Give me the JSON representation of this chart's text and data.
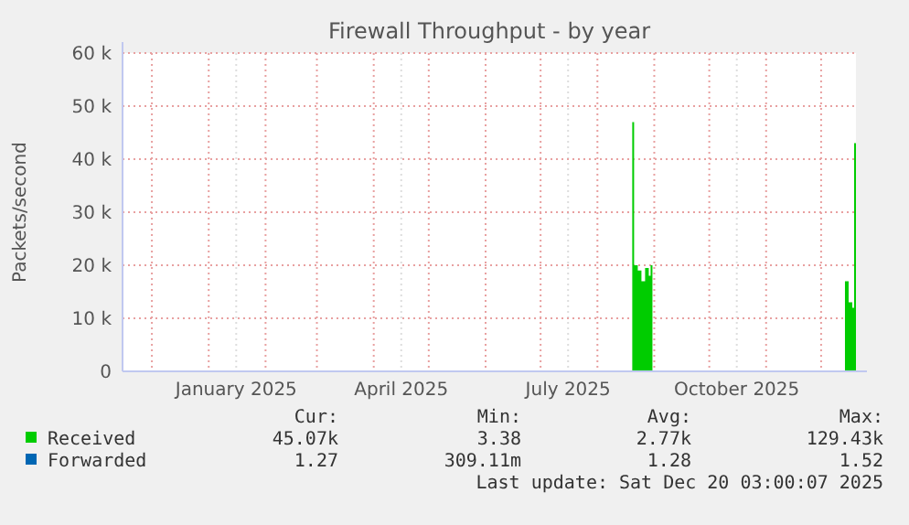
{
  "chart_data": {
    "type": "area",
    "title": "Firewall Throughput - by year",
    "ylabel": "Packets/second",
    "x": [
      "2024-11-15",
      "2025-08-19",
      "2025-08-20",
      "2025-08-21",
      "2025-08-23",
      "2025-08-25",
      "2025-08-27",
      "2025-08-29",
      "2025-08-30",
      "2025-08-31",
      "2025-12-12",
      "2025-12-14",
      "2025-12-16",
      "2025-12-18",
      "2025-12-19",
      "2025-12-20"
    ],
    "series": [
      {
        "name": "Received",
        "color": "#00cc00",
        "values": [
          0,
          0,
          47000,
          20000,
          19000,
          17000,
          19500,
          18000,
          20000,
          0,
          0,
          17000,
          13000,
          12000,
          43000,
          45000
        ]
      },
      {
        "name": "Forwarded",
        "color": "#0066b3",
        "values": [
          null,
          null,
          null,
          null,
          null,
          null,
          null,
          null,
          null,
          null,
          null,
          null,
          null,
          null,
          null,
          null
        ]
      }
    ],
    "xlim": [
      "2024-11-15",
      "2025-12-20"
    ],
    "xticks": [
      {
        "value": "2024-12-01",
        "label": null
      },
      {
        "value": "2025-01-01",
        "label": null
      },
      {
        "value": "2025-01-16",
        "label": "January 2025"
      },
      {
        "value": "2025-02-01",
        "label": null
      },
      {
        "value": "2025-03-01",
        "label": null
      },
      {
        "value": "2025-04-01",
        "label": null
      },
      {
        "value": "2025-04-16",
        "label": "April 2025"
      },
      {
        "value": "2025-05-01",
        "label": null
      },
      {
        "value": "2025-06-01",
        "label": null
      },
      {
        "value": "2025-07-01",
        "label": null
      },
      {
        "value": "2025-07-16",
        "label": "July 2025"
      },
      {
        "value": "2025-08-01",
        "label": null
      },
      {
        "value": "2025-09-01",
        "label": null
      },
      {
        "value": "2025-10-01",
        "label": null
      },
      {
        "value": "2025-10-16",
        "label": "October 2025"
      },
      {
        "value": "2025-11-01",
        "label": null
      },
      {
        "value": "2025-12-01",
        "label": null
      }
    ],
    "ylim": [
      0,
      60000
    ],
    "yticks": [
      0,
      {
        "value": 10000,
        "label": "10 k"
      },
      {
        "value": 20000,
        "label": "20 k"
      },
      {
        "value": 30000,
        "label": "30 k"
      },
      {
        "value": 40000,
        "label": "40 k"
      },
      {
        "value": 50000,
        "label": "50 k"
      },
      {
        "value": 60000,
        "label": "60 k"
      }
    ],
    "grid": true,
    "legend": "bottom",
    "annotations": [
      "Cur:",
      "Min:",
      "Avg:",
      "Max:",
      "45.07k",
      "3.38",
      "2.77k",
      "129.43k",
      "1.27",
      "309.11m",
      "1.28",
      "1.52",
      "Last update: Sat Dec 20 03:00:07 2025"
    ]
  }
}
